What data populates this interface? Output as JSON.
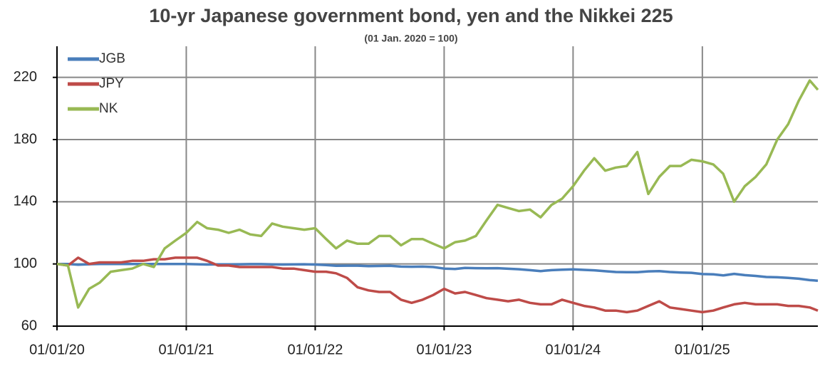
{
  "chart_data": {
    "type": "line",
    "title": "10-yr Japanese government bond, yen and the Nikkei 225",
    "subtitle": "(01 Jan. 2020 = 100)",
    "x": [
      "2020-01-01",
      "2020-02-01",
      "2020-03-01",
      "2020-04-01",
      "2020-05-01",
      "2020-06-01",
      "2020-07-01",
      "2020-08-01",
      "2020-09-01",
      "2020-10-01",
      "2020-11-01",
      "2020-12-01",
      "2021-01-01",
      "2021-02-01",
      "2021-03-01",
      "2021-04-01",
      "2021-05-01",
      "2021-06-01",
      "2021-07-01",
      "2021-08-01",
      "2021-09-01",
      "2021-10-01",
      "2021-11-01",
      "2021-12-01",
      "2022-01-01",
      "2022-02-01",
      "2022-03-01",
      "2022-04-01",
      "2022-05-01",
      "2022-06-01",
      "2022-07-01",
      "2022-08-01",
      "2022-09-01",
      "2022-10-01",
      "2022-11-01",
      "2022-12-01",
      "2023-01-01",
      "2023-02-01",
      "2023-03-01",
      "2023-04-01",
      "2023-05-01",
      "2023-06-01",
      "2023-07-01",
      "2023-08-01",
      "2023-09-01",
      "2023-10-01",
      "2023-11-01",
      "2023-12-01",
      "2024-01-01",
      "2024-02-01",
      "2024-03-01",
      "2024-04-01",
      "2024-05-01",
      "2024-06-01",
      "2024-07-01",
      "2024-08-01",
      "2024-09-01",
      "2024-10-01",
      "2024-11-01",
      "2024-12-01",
      "2025-01-01",
      "2025-02-01",
      "2025-03-01",
      "2025-04-01",
      "2025-05-01",
      "2025-06-01",
      "2025-07-01",
      "2025-08-01",
      "2025-09-01",
      "2025-10-01",
      "2025-11-01",
      "2025-11-24"
    ],
    "series": [
      {
        "name": "JGB",
        "color": "#4a7ebb",
        "values": [
          100,
          100,
          99.5,
          99.8,
          100,
          100,
          100,
          100,
          100,
          100,
          100,
          100,
          100,
          99.8,
          99.6,
          99.7,
          99.7,
          99.8,
          99.9,
          99.9,
          99.7,
          99.6,
          99.7,
          99.8,
          99.6,
          99.3,
          98.8,
          98.9,
          98.9,
          98.6,
          98.7,
          98.8,
          98.3,
          98.2,
          98.3,
          98.0,
          97.0,
          96.8,
          97.4,
          97.3,
          97.2,
          97.3,
          96.9,
          96.6,
          96.0,
          95.4,
          96.0,
          96.3,
          96.5,
          96.2,
          95.9,
          95.3,
          94.8,
          94.7,
          94.7,
          95.2,
          95.4,
          94.8,
          94.5,
          94.3,
          93.5,
          93.3,
          92.6,
          93.6,
          92.8,
          92.3,
          91.6,
          91.4,
          91.0,
          90.5,
          89.6,
          89.2
        ]
      },
      {
        "name": "JPY",
        "color": "#be4b48",
        "values": [
          100,
          99,
          104,
          100,
          101,
          101,
          101,
          102,
          102,
          103,
          103,
          104,
          104,
          104,
          102,
          99,
          99,
          98,
          98,
          98,
          98,
          97,
          97,
          96,
          95,
          95,
          94,
          91,
          85,
          83,
          82,
          82,
          77,
          75,
          77,
          80,
          84,
          81,
          82,
          80,
          78,
          77,
          76,
          77,
          75,
          74,
          74,
          77,
          75,
          73,
          72,
          70,
          70,
          69,
          70,
          73,
          76,
          72,
          71,
          70,
          69,
          70,
          72,
          74,
          75,
          74,
          74,
          74,
          73,
          73,
          72,
          70
        ]
      },
      {
        "name": "NK",
        "color": "#98b954",
        "values": [
          100,
          99,
          72,
          84,
          88,
          95,
          96,
          97,
          100,
          98,
          110,
          115,
          120,
          127,
          123,
          122,
          120,
          122,
          119,
          118,
          126,
          124,
          123,
          122,
          123,
          116,
          110,
          115,
          113,
          113,
          118,
          118,
          112,
          116,
          116,
          113,
          110,
          114,
          115,
          118,
          128,
          138,
          136,
          134,
          135,
          130,
          138,
          142,
          150,
          160,
          168,
          160,
          162,
          163,
          172,
          145,
          156,
          163,
          163,
          167,
          166,
          164,
          158,
          140,
          150,
          156,
          164,
          180,
          190,
          205,
          218,
          212
        ]
      }
    ],
    "xlim": [
      "2020-01-01",
      "2025-11-24"
    ],
    "xticks": [
      {
        "value": "2020-01-01",
        "label": "01/01/20"
      },
      {
        "value": "2021-01-01",
        "label": "01/01/21"
      },
      {
        "value": "2022-01-01",
        "label": "01/01/22"
      },
      {
        "value": "2023-01-01",
        "label": "01/01/23"
      },
      {
        "value": "2024-01-01",
        "label": "01/01/24"
      },
      {
        "value": "2025-01-01",
        "label": "01/01/25"
      }
    ],
    "ylim": [
      60,
      240
    ],
    "yticks": [
      60,
      100,
      140,
      180,
      220
    ],
    "grid": true,
    "legend": "upper left"
  }
}
